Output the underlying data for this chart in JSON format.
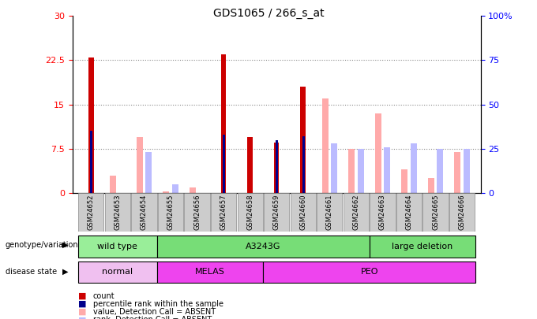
{
  "title": "GDS1065 / 266_s_at",
  "samples": [
    "GSM24652",
    "GSM24653",
    "GSM24654",
    "GSM24655",
    "GSM24656",
    "GSM24657",
    "GSM24658",
    "GSM24659",
    "GSM24660",
    "GSM24661",
    "GSM24662",
    "GSM24663",
    "GSM24664",
    "GSM24665",
    "GSM24666"
  ],
  "count": [
    23.0,
    0,
    0,
    0,
    0,
    23.5,
    9.5,
    8.5,
    18.0,
    0,
    0,
    0,
    0,
    0,
    0
  ],
  "percentile_rank_right": [
    35,
    0,
    0,
    0,
    0,
    33,
    0,
    30,
    32,
    0,
    0,
    0,
    0,
    0,
    0
  ],
  "value_absent": [
    0,
    3.0,
    9.5,
    0.3,
    1.0,
    0,
    0,
    0,
    0,
    16.0,
    7.5,
    13.5,
    4.0,
    2.5,
    7.0
  ],
  "rank_absent_right": [
    0,
    0,
    23,
    5,
    0,
    0,
    0,
    0,
    0,
    28,
    25,
    26,
    28,
    25,
    25
  ],
  "left_yticks": [
    0,
    7.5,
    15.0,
    22.5,
    30
  ],
  "right_yticks": [
    0,
    25,
    50,
    75,
    100
  ],
  "ylim_left": [
    0,
    30
  ],
  "ylim_right": [
    0,
    100
  ],
  "genotype_groups": [
    {
      "label": "wild type",
      "start": 0,
      "end": 3,
      "color": "#99ee99"
    },
    {
      "label": "A3243G",
      "start": 3,
      "end": 11,
      "color": "#77dd77"
    },
    {
      "label": "large deletion",
      "start": 11,
      "end": 15,
      "color": "#77dd77"
    }
  ],
  "disease_normal_color": "#f0c0f0",
  "disease_melas_color": "#ee44ee",
  "disease_peo_color": "#ee44ee",
  "disease_groups": [
    {
      "label": "normal",
      "start": 0,
      "end": 3
    },
    {
      "label": "MELAS",
      "start": 3,
      "end": 7
    },
    {
      "label": "PEO",
      "start": 7,
      "end": 15
    }
  ],
  "count_color": "#cc0000",
  "percentile_color": "#00008b",
  "value_absent_color": "#ffaaaa",
  "rank_absent_color": "#bbbbff",
  "bg_color": "#ffffff"
}
